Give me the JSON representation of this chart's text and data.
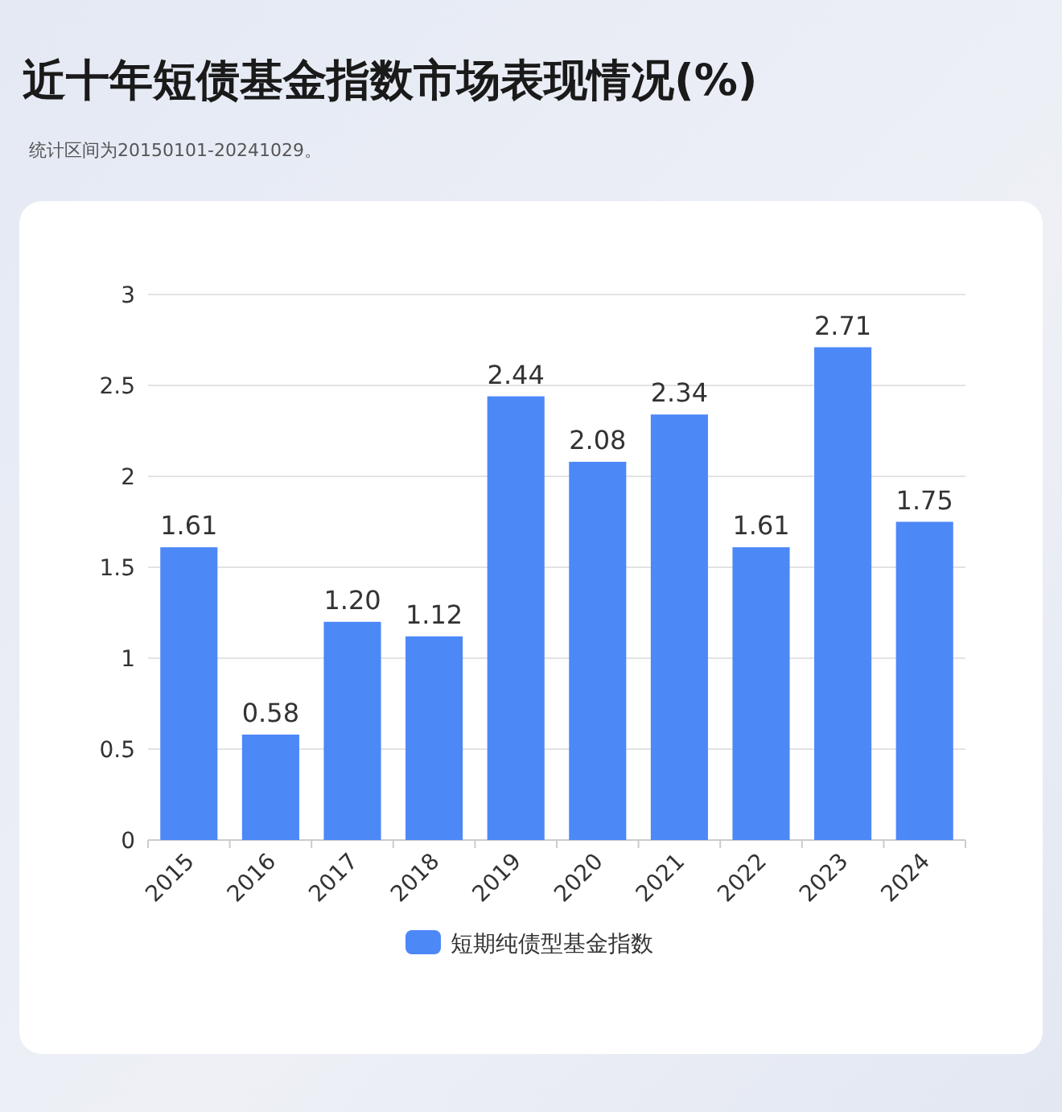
{
  "chart_data": {
    "type": "bar",
    "title": "近十年短债基金指数市场表现情况(%)",
    "annotations": [
      "统计区间为20150101-20241029。"
    ],
    "categories": [
      "2015",
      "2016",
      "2017",
      "2018",
      "2019",
      "2020",
      "2021",
      "2022",
      "2023",
      "2024"
    ],
    "series": [
      {
        "name": "短期纯债型基金指数",
        "color": "#4d88f7",
        "values": [
          1.61,
          0.58,
          1.2,
          1.12,
          2.44,
          2.08,
          2.34,
          1.61,
          2.71,
          1.75
        ],
        "value_labels": [
          "1.61",
          "0.58",
          "1.20",
          "1.12",
          "2.44",
          "2.08",
          "2.34",
          "1.61",
          "2.71",
          "1.75"
        ]
      }
    ],
    "ylim": [
      0,
      3
    ],
    "yticks": [
      0,
      0.5,
      1,
      1.5,
      2,
      2.5,
      3
    ],
    "grid": "y",
    "legend": "bottom"
  }
}
